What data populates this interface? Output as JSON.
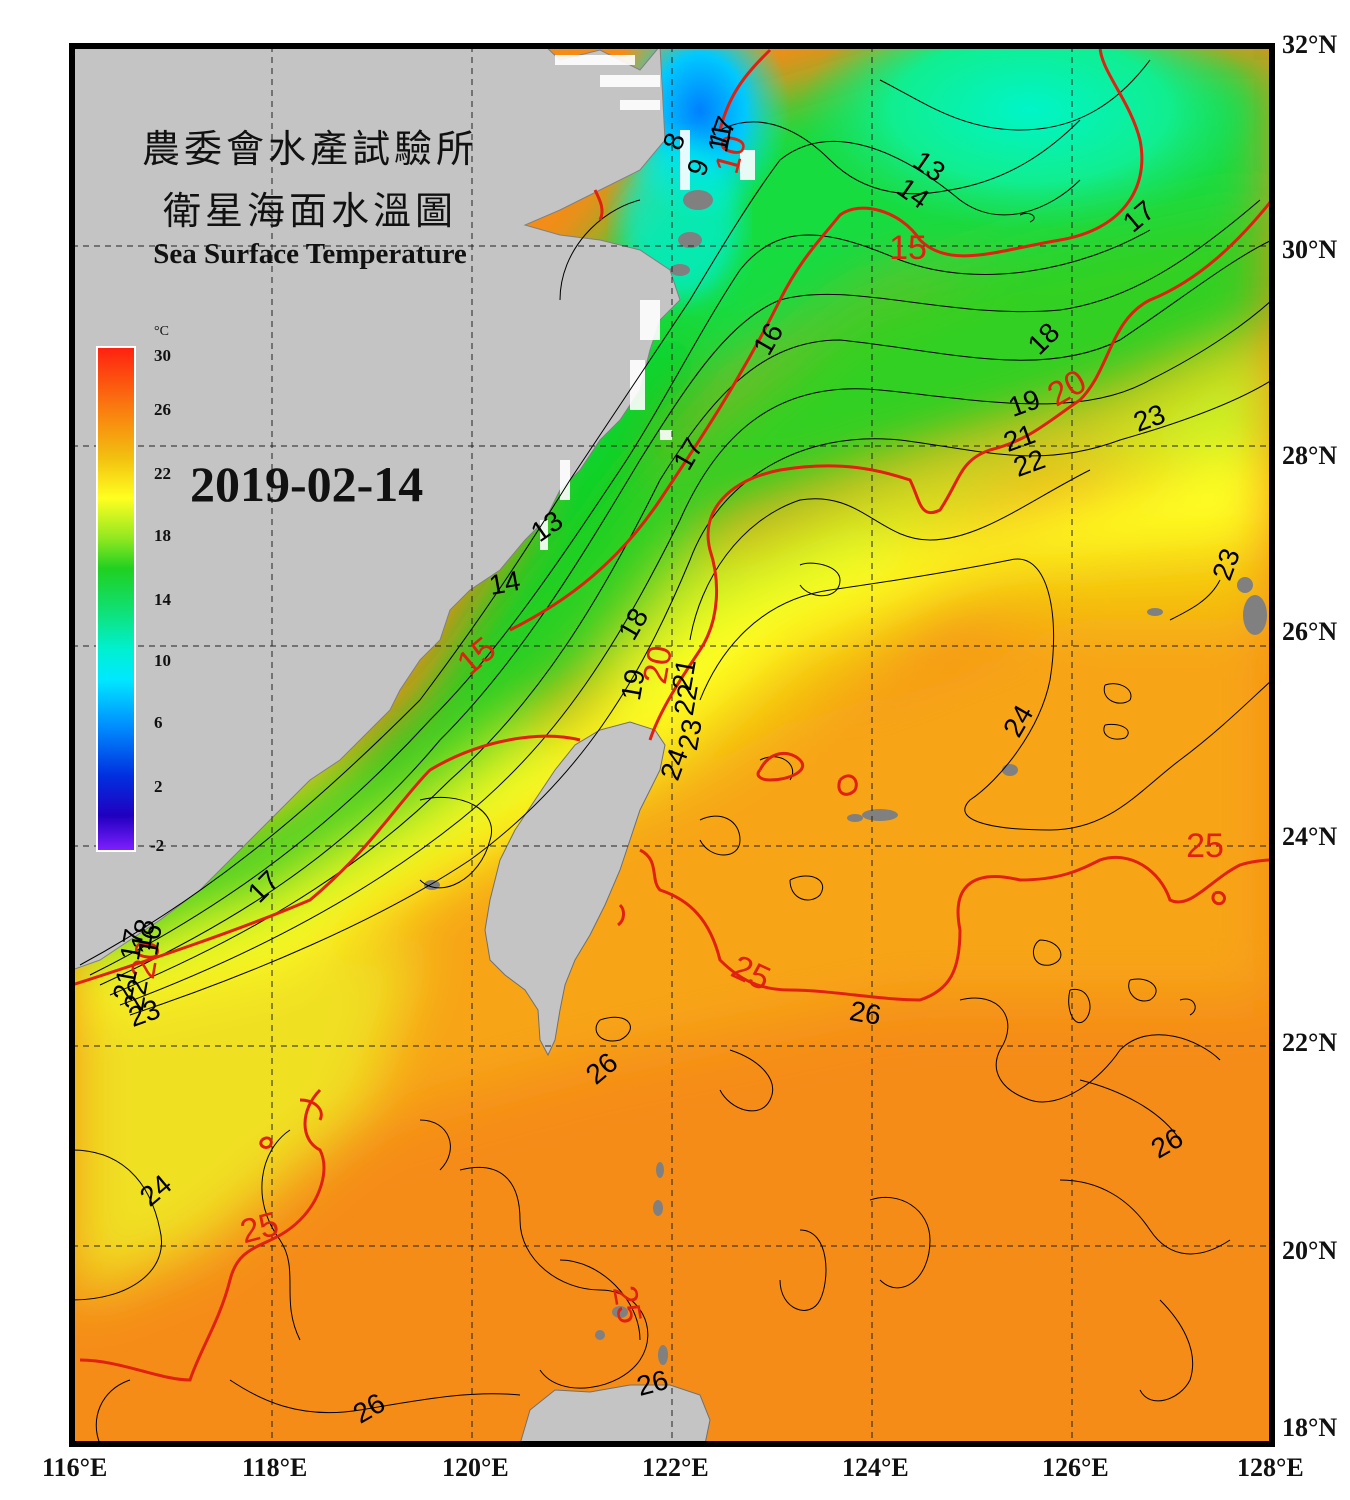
{
  "title": {
    "line1": "農委會水產試驗所",
    "line2": "衛星海面水溫圖",
    "line3": "Sea Surface Temperature"
  },
  "date": "2019-02-14",
  "colorbar": {
    "unit": "°C",
    "ticks": [
      "30",
      "26",
      "22",
      "18",
      "14",
      "10",
      "6",
      "2",
      "-2"
    ],
    "range": [
      -2,
      30
    ],
    "colors": [
      "#ff3010",
      "#fa8a10",
      "#f0d010",
      "#ffff20",
      "#c0f020",
      "#30d020",
      "#18e060",
      "#00f0d0",
      "#00e8ff",
      "#0090ff",
      "#0030e0",
      "#2000d0",
      "#8020ff"
    ]
  },
  "axes": {
    "lon_labels": [
      "116°E",
      "118°E",
      "120°E",
      "122°E",
      "124°E",
      "126°E",
      "128°E"
    ],
    "lat_labels": [
      "32°N",
      "30°N",
      "28°N",
      "26°N",
      "24°N",
      "22°N",
      "20°N",
      "18°N"
    ],
    "lon_range": [
      116,
      128
    ],
    "lat_range": [
      18,
      32
    ],
    "grid": "dashed"
  },
  "map_colors": {
    "land": "#c4c4c4",
    "contour_major": "#e02010",
    "contour_minor": "#000000",
    "frame": "#000000"
  },
  "contour_labels": [
    {
      "text": "8",
      "color": "black"
    },
    {
      "text": "9",
      "color": "black"
    },
    {
      "text": "10",
      "color": "red"
    },
    {
      "text": "11",
      "color": "black"
    },
    {
      "text": "13",
      "color": "black"
    },
    {
      "text": "14",
      "color": "black"
    },
    {
      "text": "15",
      "color": "red"
    },
    {
      "text": "16",
      "color": "black"
    },
    {
      "text": "17",
      "color": "black"
    },
    {
      "text": "18",
      "color": "black"
    },
    {
      "text": "19",
      "color": "black"
    },
    {
      "text": "20",
      "color": "red"
    },
    {
      "text": "21",
      "color": "black"
    },
    {
      "text": "22",
      "color": "black"
    },
    {
      "text": "23",
      "color": "black"
    },
    {
      "text": "13",
      "color": "black"
    },
    {
      "text": "14",
      "color": "black"
    },
    {
      "text": "15",
      "color": "red"
    },
    {
      "text": "17",
      "color": "black"
    },
    {
      "text": "18",
      "color": "black"
    },
    {
      "text": "19",
      "color": "black"
    },
    {
      "text": "20",
      "color": "red"
    },
    {
      "text": "21",
      "color": "black"
    },
    {
      "text": "22",
      "color": "black"
    },
    {
      "text": "23",
      "color": "black"
    },
    {
      "text": "23",
      "color": "black"
    },
    {
      "text": "24",
      "color": "black"
    },
    {
      "text": "25",
      "color": "red"
    },
    {
      "text": "25",
      "color": "red"
    },
    {
      "text": "26",
      "color": "black"
    },
    {
      "text": "26",
      "color": "black"
    },
    {
      "text": "26",
      "color": "black"
    },
    {
      "text": "24",
      "color": "black"
    },
    {
      "text": "25",
      "color": "red"
    },
    {
      "text": "26",
      "color": "black"
    },
    {
      "text": "26",
      "color": "black"
    },
    {
      "text": "25",
      "color": "red"
    },
    {
      "text": "17",
      "color": "black"
    },
    {
      "text": "20",
      "color": "red"
    },
    {
      "text": "21",
      "color": "black"
    },
    {
      "text": "22",
      "color": "black"
    },
    {
      "text": "23",
      "color": "black"
    },
    {
      "text": "24",
      "color": "black"
    },
    {
      "text": "18",
      "color": "black"
    },
    {
      "text": "17",
      "color": "black"
    },
    {
      "text": "16",
      "color": "black"
    },
    {
      "text": "17",
      "color": "black"
    }
  ]
}
